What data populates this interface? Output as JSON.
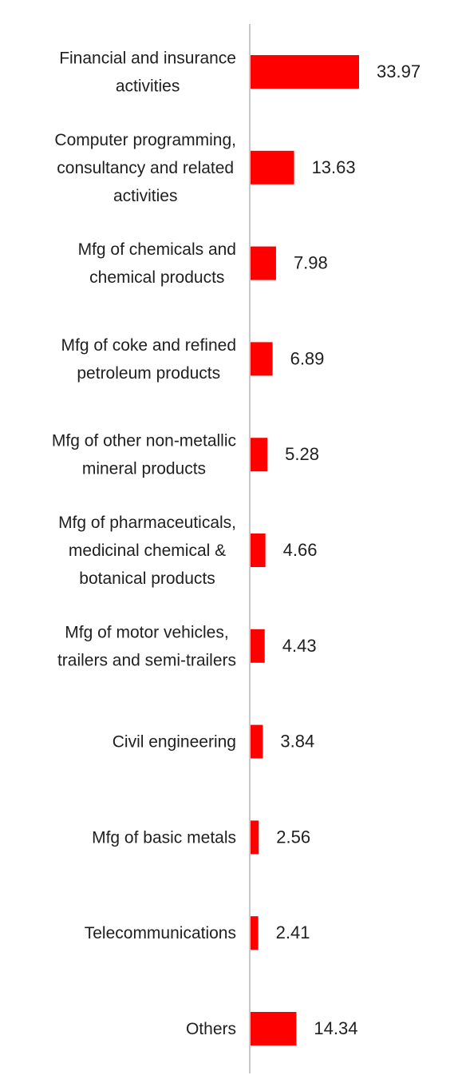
{
  "chart_data": {
    "type": "bar",
    "orientation": "horizontal",
    "categories": [
      [
        "Financial and insurance",
        "activities"
      ],
      [
        "Computer programming,",
        "consultancy and related",
        "activities"
      ],
      [
        "Mfg of chemicals and",
        "chemical products"
      ],
      [
        "Mfg of coke and refined",
        "petroleum products"
      ],
      [
        "Mfg of other non-metallic",
        "mineral products"
      ],
      [
        "Mfg of pharmaceuticals,",
        "medicinal chemical &",
        "botanical products"
      ],
      [
        "Mfg of motor vehicles,",
        "trailers and semi-trailers"
      ],
      [
        "Civil engineering"
      ],
      [
        "Mfg of basic metals"
      ],
      [
        "Telecommunications"
      ],
      [
        "Others"
      ]
    ],
    "values": [
      33.97,
      13.63,
      7.98,
      6.89,
      5.28,
      4.66,
      4.43,
      3.84,
      2.56,
      2.41,
      14.34
    ],
    "value_labels": [
      "33.97",
      "13.63",
      "7.98",
      "6.89",
      "5.28",
      "4.66",
      "4.43",
      "3.84",
      "2.56",
      "2.41",
      "14.34"
    ],
    "bar_color": "#ff0000",
    "axis_color": "#c8c8c8",
    "grid": false,
    "legend": false,
    "xlim": [
      0,
      34
    ]
  }
}
